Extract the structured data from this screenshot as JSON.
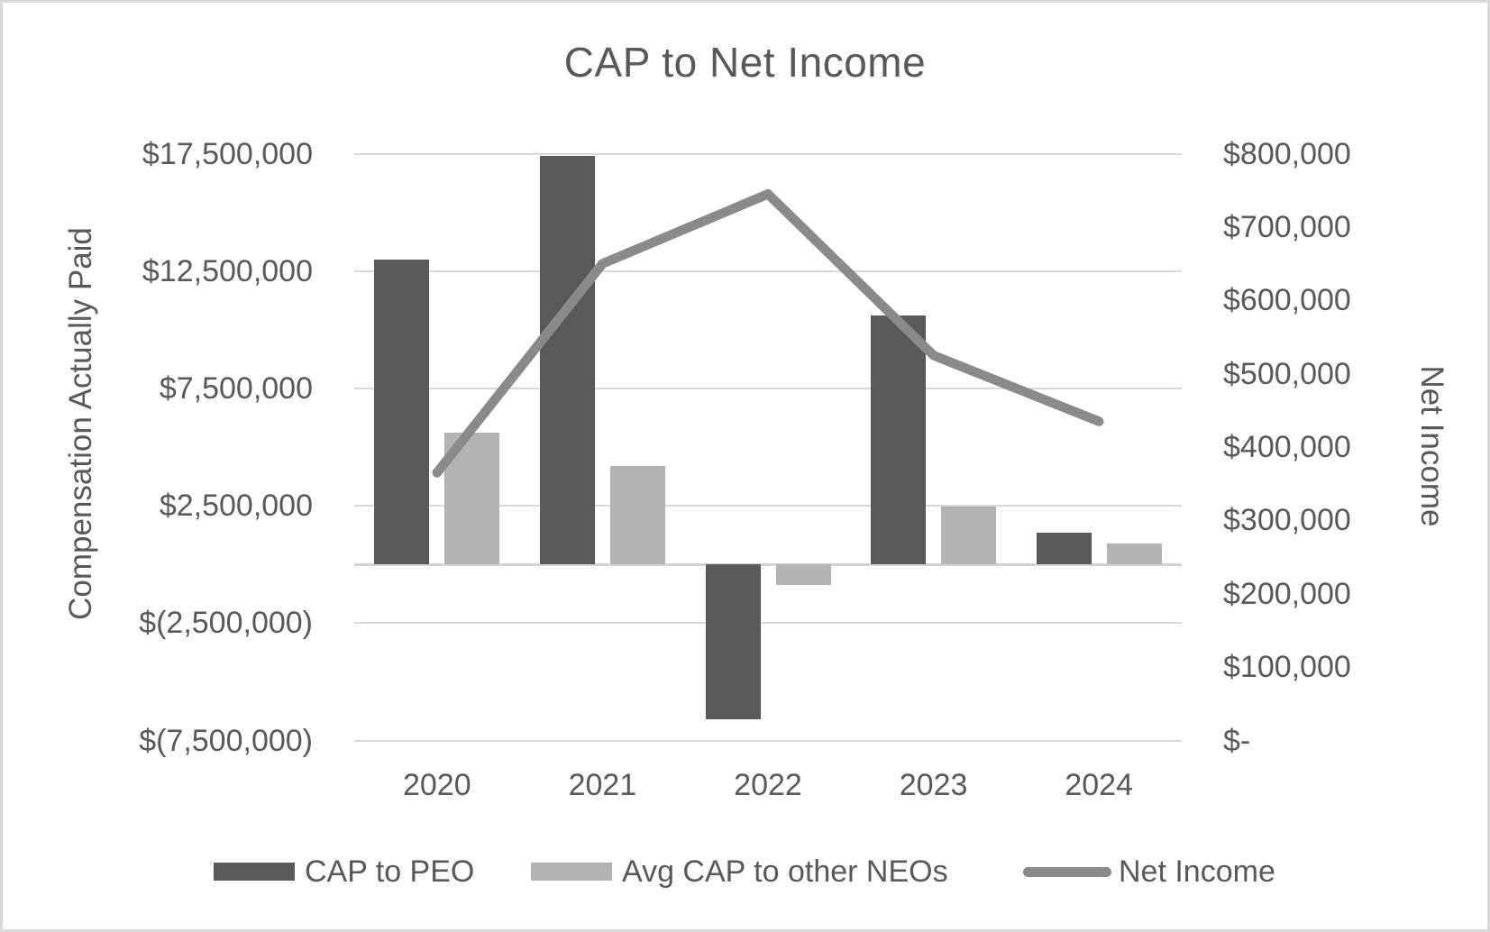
{
  "chart_data": {
    "type": "bar",
    "subtype": "clustered-bar-with-line-combo",
    "title": "CAP to Net Income",
    "categories": [
      "2020",
      "2021",
      "2022",
      "2023",
      "2024"
    ],
    "series": [
      {
        "name": "CAP to PEO",
        "type": "bar",
        "axis": "left",
        "color": "#595959",
        "values": [
          13000000,
          17400000,
          -6600000,
          10600000,
          1350000
        ]
      },
      {
        "name": "Avg CAP to other NEOs",
        "type": "bar",
        "axis": "left",
        "color": "#b3b3b3",
        "values": [
          5600000,
          4200000,
          -870000,
          2450000,
          900000
        ]
      },
      {
        "name": "Net Income",
        "type": "line",
        "axis": "right",
        "color": "#8a8a8a",
        "values": [
          365000,
          650000,
          745000,
          525000,
          435000
        ]
      }
    ],
    "left_axis": {
      "title": "Compensation Actually Paid",
      "min": -7500000,
      "max": 17500000,
      "ticks": [
        {
          "value": 17500000,
          "label": "$17,500,000"
        },
        {
          "value": 12500000,
          "label": "$12,500,000"
        },
        {
          "value": 7500000,
          "label": "$7,500,000"
        },
        {
          "value": 2500000,
          "label": "$2,500,000"
        },
        {
          "value": -2500000,
          "label": "$(2,500,000)"
        },
        {
          "value": -7500000,
          "label": "$(7,500,000)"
        }
      ]
    },
    "right_axis": {
      "title": "Net Income",
      "min": 0,
      "max": 800000,
      "ticks": [
        {
          "value": 800000,
          "label": "$800,000"
        },
        {
          "value": 700000,
          "label": "$700,000"
        },
        {
          "value": 600000,
          "label": "$600,000"
        },
        {
          "value": 500000,
          "label": "$500,000"
        },
        {
          "value": 400000,
          "label": "$400,000"
        },
        {
          "value": 300000,
          "label": "$300,000"
        },
        {
          "value": 200000,
          "label": "$200,000"
        },
        {
          "value": 100000,
          "label": "$100,000"
        },
        {
          "value": 0,
          "label": "$-"
        }
      ]
    },
    "legend_position": "bottom",
    "grid": "horizontal-major-gridlines",
    "colors": {
      "grid": "#d9d9d9",
      "text": "#595959",
      "frame_border": "#d9d9d9",
      "background": "#ffffff"
    }
  }
}
